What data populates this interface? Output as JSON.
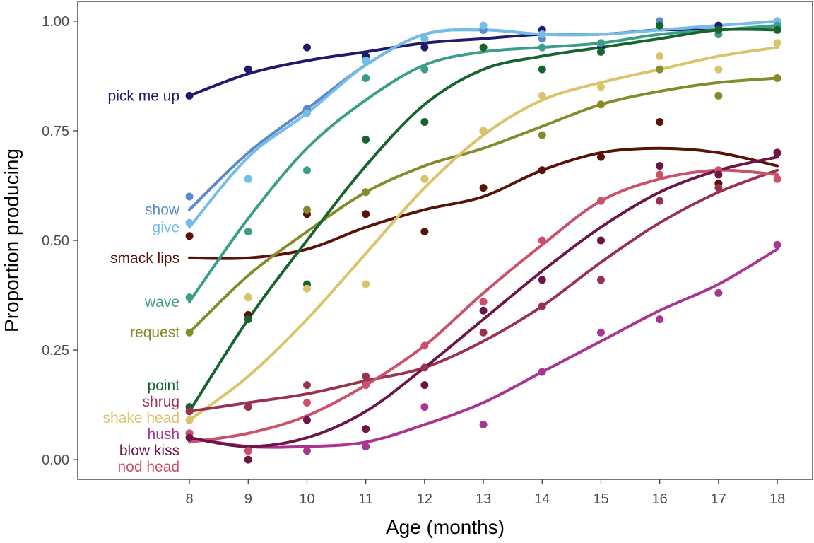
{
  "chart_data": {
    "type": "scatter",
    "title": "",
    "xlabel": "Age (months)",
    "ylabel": "Proportion producing",
    "xlim": [
      6.1,
      18.6
    ],
    "ylim": [
      -0.045,
      1.045
    ],
    "x_ticks": [
      8,
      9,
      10,
      11,
      12,
      13,
      14,
      15,
      16,
      17,
      18
    ],
    "y_ticks": [
      0.0,
      0.25,
      0.5,
      0.75,
      1.0
    ],
    "y_tick_labels": [
      "0.00",
      "0.25",
      "0.50",
      "0.75",
      "1.00"
    ],
    "grid": false,
    "legend": "direct labels at left of lines (x = 8)",
    "x": [
      8,
      9,
      10,
      11,
      12,
      13,
      14,
      15,
      16,
      17,
      18
    ],
    "series": [
      {
        "name": "pick me up",
        "color": "#1f1a6e",
        "points": [
          0.83,
          0.89,
          0.94,
          0.92,
          0.94,
          0.98,
          0.98,
          0.94,
          0.99,
          0.99,
          0.99
        ],
        "fit": [
          0.83,
          0.88,
          0.91,
          0.93,
          0.95,
          0.96,
          0.97,
          0.97,
          0.98,
          0.98,
          0.99
        ]
      },
      {
        "name": "show",
        "color": "#5b8ac9",
        "points": [
          0.6,
          0.64,
          0.8,
          0.91,
          0.96,
          0.98,
          0.96,
          0.95,
          1.0,
          0.98,
          1.0
        ],
        "fit": [
          0.57,
          0.7,
          0.8,
          0.9,
          0.97,
          0.98,
          0.97,
          0.97,
          0.98,
          0.99,
          1.0
        ]
      },
      {
        "name": "give",
        "color": "#74bde8",
        "points": [
          0.54,
          0.64,
          0.79,
          0.91,
          0.96,
          0.99,
          0.97,
          0.95,
          0.99,
          0.97,
          1.0
        ],
        "fit": [
          0.53,
          0.69,
          0.79,
          0.9,
          0.97,
          0.98,
          0.97,
          0.97,
          0.98,
          0.99,
          1.0
        ]
      },
      {
        "name": "smack lips",
        "color": "#5a1208",
        "points": [
          0.51,
          0.33,
          0.56,
          0.56,
          0.52,
          0.62,
          0.66,
          0.69,
          0.77,
          0.63,
          0.7
        ],
        "fit": [
          0.46,
          0.46,
          0.48,
          0.53,
          0.57,
          0.6,
          0.66,
          0.7,
          0.71,
          0.7,
          0.67
        ]
      },
      {
        "name": "wave",
        "color": "#3a9e88",
        "points": [
          0.37,
          0.52,
          0.66,
          0.87,
          0.89,
          0.94,
          0.94,
          0.95,
          0.99,
          0.97,
          0.99
        ],
        "fit": [
          0.36,
          0.55,
          0.71,
          0.82,
          0.9,
          0.93,
          0.94,
          0.95,
          0.97,
          0.98,
          0.99
        ]
      },
      {
        "name": "request",
        "color": "#858a2a",
        "points": [
          0.29,
          0.37,
          0.57,
          0.61,
          0.64,
          0.75,
          0.74,
          0.81,
          0.89,
          0.83,
          0.87
        ],
        "fit": [
          0.29,
          0.42,
          0.52,
          0.61,
          0.67,
          0.71,
          0.76,
          0.81,
          0.84,
          0.86,
          0.87
        ]
      },
      {
        "name": "point",
        "color": "#17642e",
        "points": [
          0.12,
          0.32,
          0.4,
          0.73,
          0.77,
          0.94,
          0.89,
          0.93,
          0.99,
          0.98,
          0.98
        ],
        "fit": [
          0.11,
          0.32,
          0.5,
          0.67,
          0.81,
          0.89,
          0.92,
          0.94,
          0.96,
          0.98,
          0.98
        ]
      },
      {
        "name": "shake head",
        "color": "#d9c46a",
        "points": [
          0.09,
          0.37,
          0.39,
          0.4,
          0.64,
          0.75,
          0.83,
          0.85,
          0.92,
          0.89,
          0.95
        ],
        "fit": [
          0.09,
          0.19,
          0.32,
          0.47,
          0.62,
          0.74,
          0.82,
          0.86,
          0.89,
          0.92,
          0.94
        ]
      },
      {
        "name": "shrug",
        "color": "#99324f",
        "points": [
          0.11,
          0.12,
          0.17,
          0.19,
          0.21,
          0.29,
          0.35,
          0.41,
          0.59,
          0.62,
          0.7
        ],
        "fit": [
          0.11,
          0.13,
          0.15,
          0.18,
          0.21,
          0.27,
          0.35,
          0.45,
          0.54,
          0.61,
          0.66
        ]
      },
      {
        "name": "hush",
        "color": "#a83591",
        "points": [
          0.06,
          0.02,
          0.02,
          0.03,
          0.12,
          0.08,
          0.2,
          0.29,
          0.32,
          0.38,
          0.49
        ],
        "fit": [
          0.05,
          0.03,
          0.03,
          0.04,
          0.08,
          0.13,
          0.2,
          0.27,
          0.34,
          0.4,
          0.48
        ]
      },
      {
        "name": "nod head",
        "color": "#cc506a",
        "points": [
          0.06,
          0.02,
          0.13,
          0.17,
          0.26,
          0.36,
          0.5,
          0.59,
          0.65,
          0.66,
          0.64
        ],
        "fit": [
          0.04,
          0.06,
          0.1,
          0.17,
          0.26,
          0.38,
          0.49,
          0.59,
          0.64,
          0.66,
          0.65
        ]
      },
      {
        "name": "blow kiss",
        "color": "#6e1547",
        "points": [
          0.05,
          0.0,
          0.09,
          0.07,
          0.17,
          0.34,
          0.41,
          0.5,
          0.67,
          0.65,
          0.7
        ],
        "fit": [
          0.05,
          0.03,
          0.05,
          0.11,
          0.21,
          0.32,
          0.43,
          0.53,
          0.61,
          0.66,
          0.69
        ]
      }
    ]
  }
}
